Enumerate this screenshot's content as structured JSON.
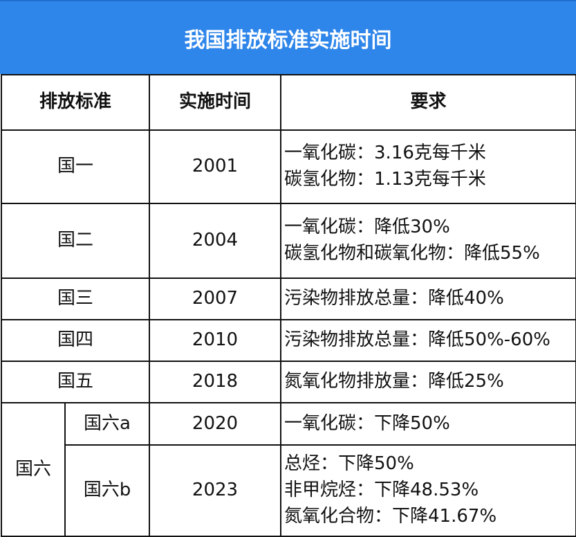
{
  "title": "我国排放标准实施时间",
  "headers": {
    "standard": "排放标准",
    "date": "实施时间",
    "requirement": "要求"
  },
  "rows": [
    {
      "standard": "国一",
      "year": "2001",
      "requirements": [
        "一氧化碳：3.16克每千米",
        "碳氢化物：1.13克每千米"
      ]
    },
    {
      "standard": "国二",
      "year": "2004",
      "requirements": [
        "一氧化碳：降低30%",
        "碳氢化物和碳氧化物：降低55%"
      ]
    },
    {
      "standard": "国三",
      "year": "2007",
      "requirements": [
        "污染物排放总量：降低40%"
      ]
    },
    {
      "standard": "国四",
      "year": "2010",
      "requirements": [
        "污染物排放总量：降低50%-60%"
      ]
    },
    {
      "standard": "国五",
      "year": "2018",
      "requirements": [
        "氮氧化物排放量：降低25%"
      ]
    }
  ],
  "group_six": {
    "label": "国六",
    "subrows": [
      {
        "standard": "国六a",
        "year": "2020",
        "requirements": [
          "一氧化碳：下降50%"
        ]
      },
      {
        "standard": "国六b",
        "year": "2023",
        "requirements": [
          "总烃：下降50%",
          "非甲烷烃：下降48.53%",
          "氮氧化合物：下降41.67%"
        ]
      }
    ]
  }
}
